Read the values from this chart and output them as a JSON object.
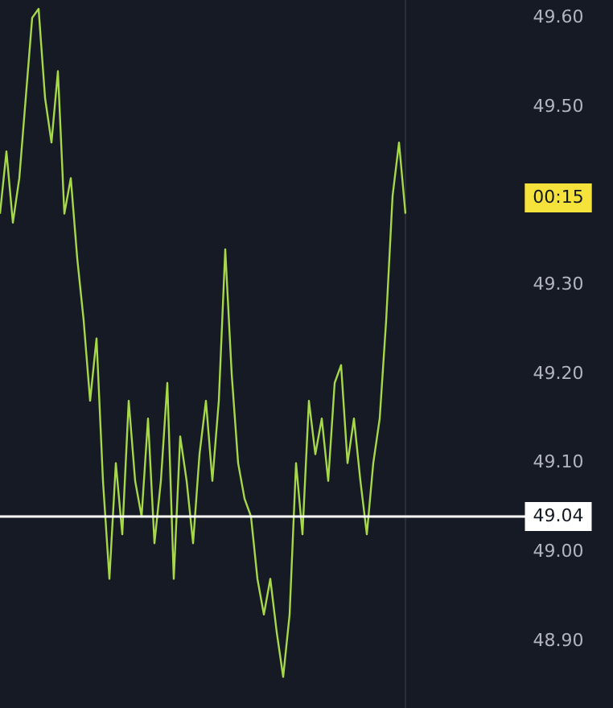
{
  "chart_data": {
    "type": "line",
    "categories": [
      null,
      null,
      null,
      null,
      null,
      null,
      null,
      null,
      null,
      null,
      null,
      null,
      null,
      null,
      null,
      null,
      null,
      null,
      null,
      null,
      null,
      null,
      null,
      null,
      null,
      null,
      null,
      null,
      null,
      null,
      null,
      null,
      null,
      null,
      null,
      null,
      null,
      null,
      null,
      null,
      null,
      null,
      null,
      null,
      null,
      null,
      null,
      null,
      null,
      null,
      null,
      null,
      null,
      null,
      null,
      null,
      null,
      null,
      null,
      null,
      null,
      null,
      null,
      null
    ],
    "series": [
      {
        "color": "#a6d84a",
        "values": [
          49.38,
          49.45,
          49.37,
          49.42,
          49.51,
          49.6,
          49.61,
          49.51,
          49.46,
          49.54,
          49.38,
          49.42,
          49.33,
          49.26,
          49.17,
          49.24,
          49.08,
          48.97,
          49.1,
          49.02,
          49.17,
          49.08,
          49.04,
          49.15,
          49.01,
          49.08,
          49.19,
          48.97,
          49.13,
          49.08,
          49.01,
          49.11,
          49.17,
          49.08,
          49.17,
          49.34,
          49.2,
          49.1,
          49.06,
          49.04,
          48.97,
          48.93,
          48.97,
          48.91,
          48.86,
          48.93,
          49.1,
          49.02,
          49.17,
          49.11,
          49.15,
          49.08,
          49.19,
          49.21,
          49.1,
          49.15,
          49.08,
          49.02,
          49.1,
          49.15,
          49.26,
          49.4,
          49.46,
          49.38
        ]
      }
    ],
    "ylim": [
      48.825,
      49.62
    ],
    "yticks": [
      {
        "value": 48.9,
        "label": "48.90"
      },
      {
        "value": 49.0,
        "label": "49.00"
      },
      {
        "value": 49.1,
        "label": "49.10"
      },
      {
        "value": 49.2,
        "label": "49.20"
      },
      {
        "value": 49.3,
        "label": "49.30"
      },
      {
        "value": 49.5,
        "label": "49.50"
      },
      {
        "value": 49.6,
        "label": "49.60"
      }
    ],
    "tick_labels": "y",
    "grid": false,
    "legend": false,
    "ref_lines": [
      {
        "axis": "y",
        "value": 49.04,
        "label": "49.04",
        "color": "#ffffff"
      }
    ],
    "annotations": [
      "00:15"
    ]
  }
}
